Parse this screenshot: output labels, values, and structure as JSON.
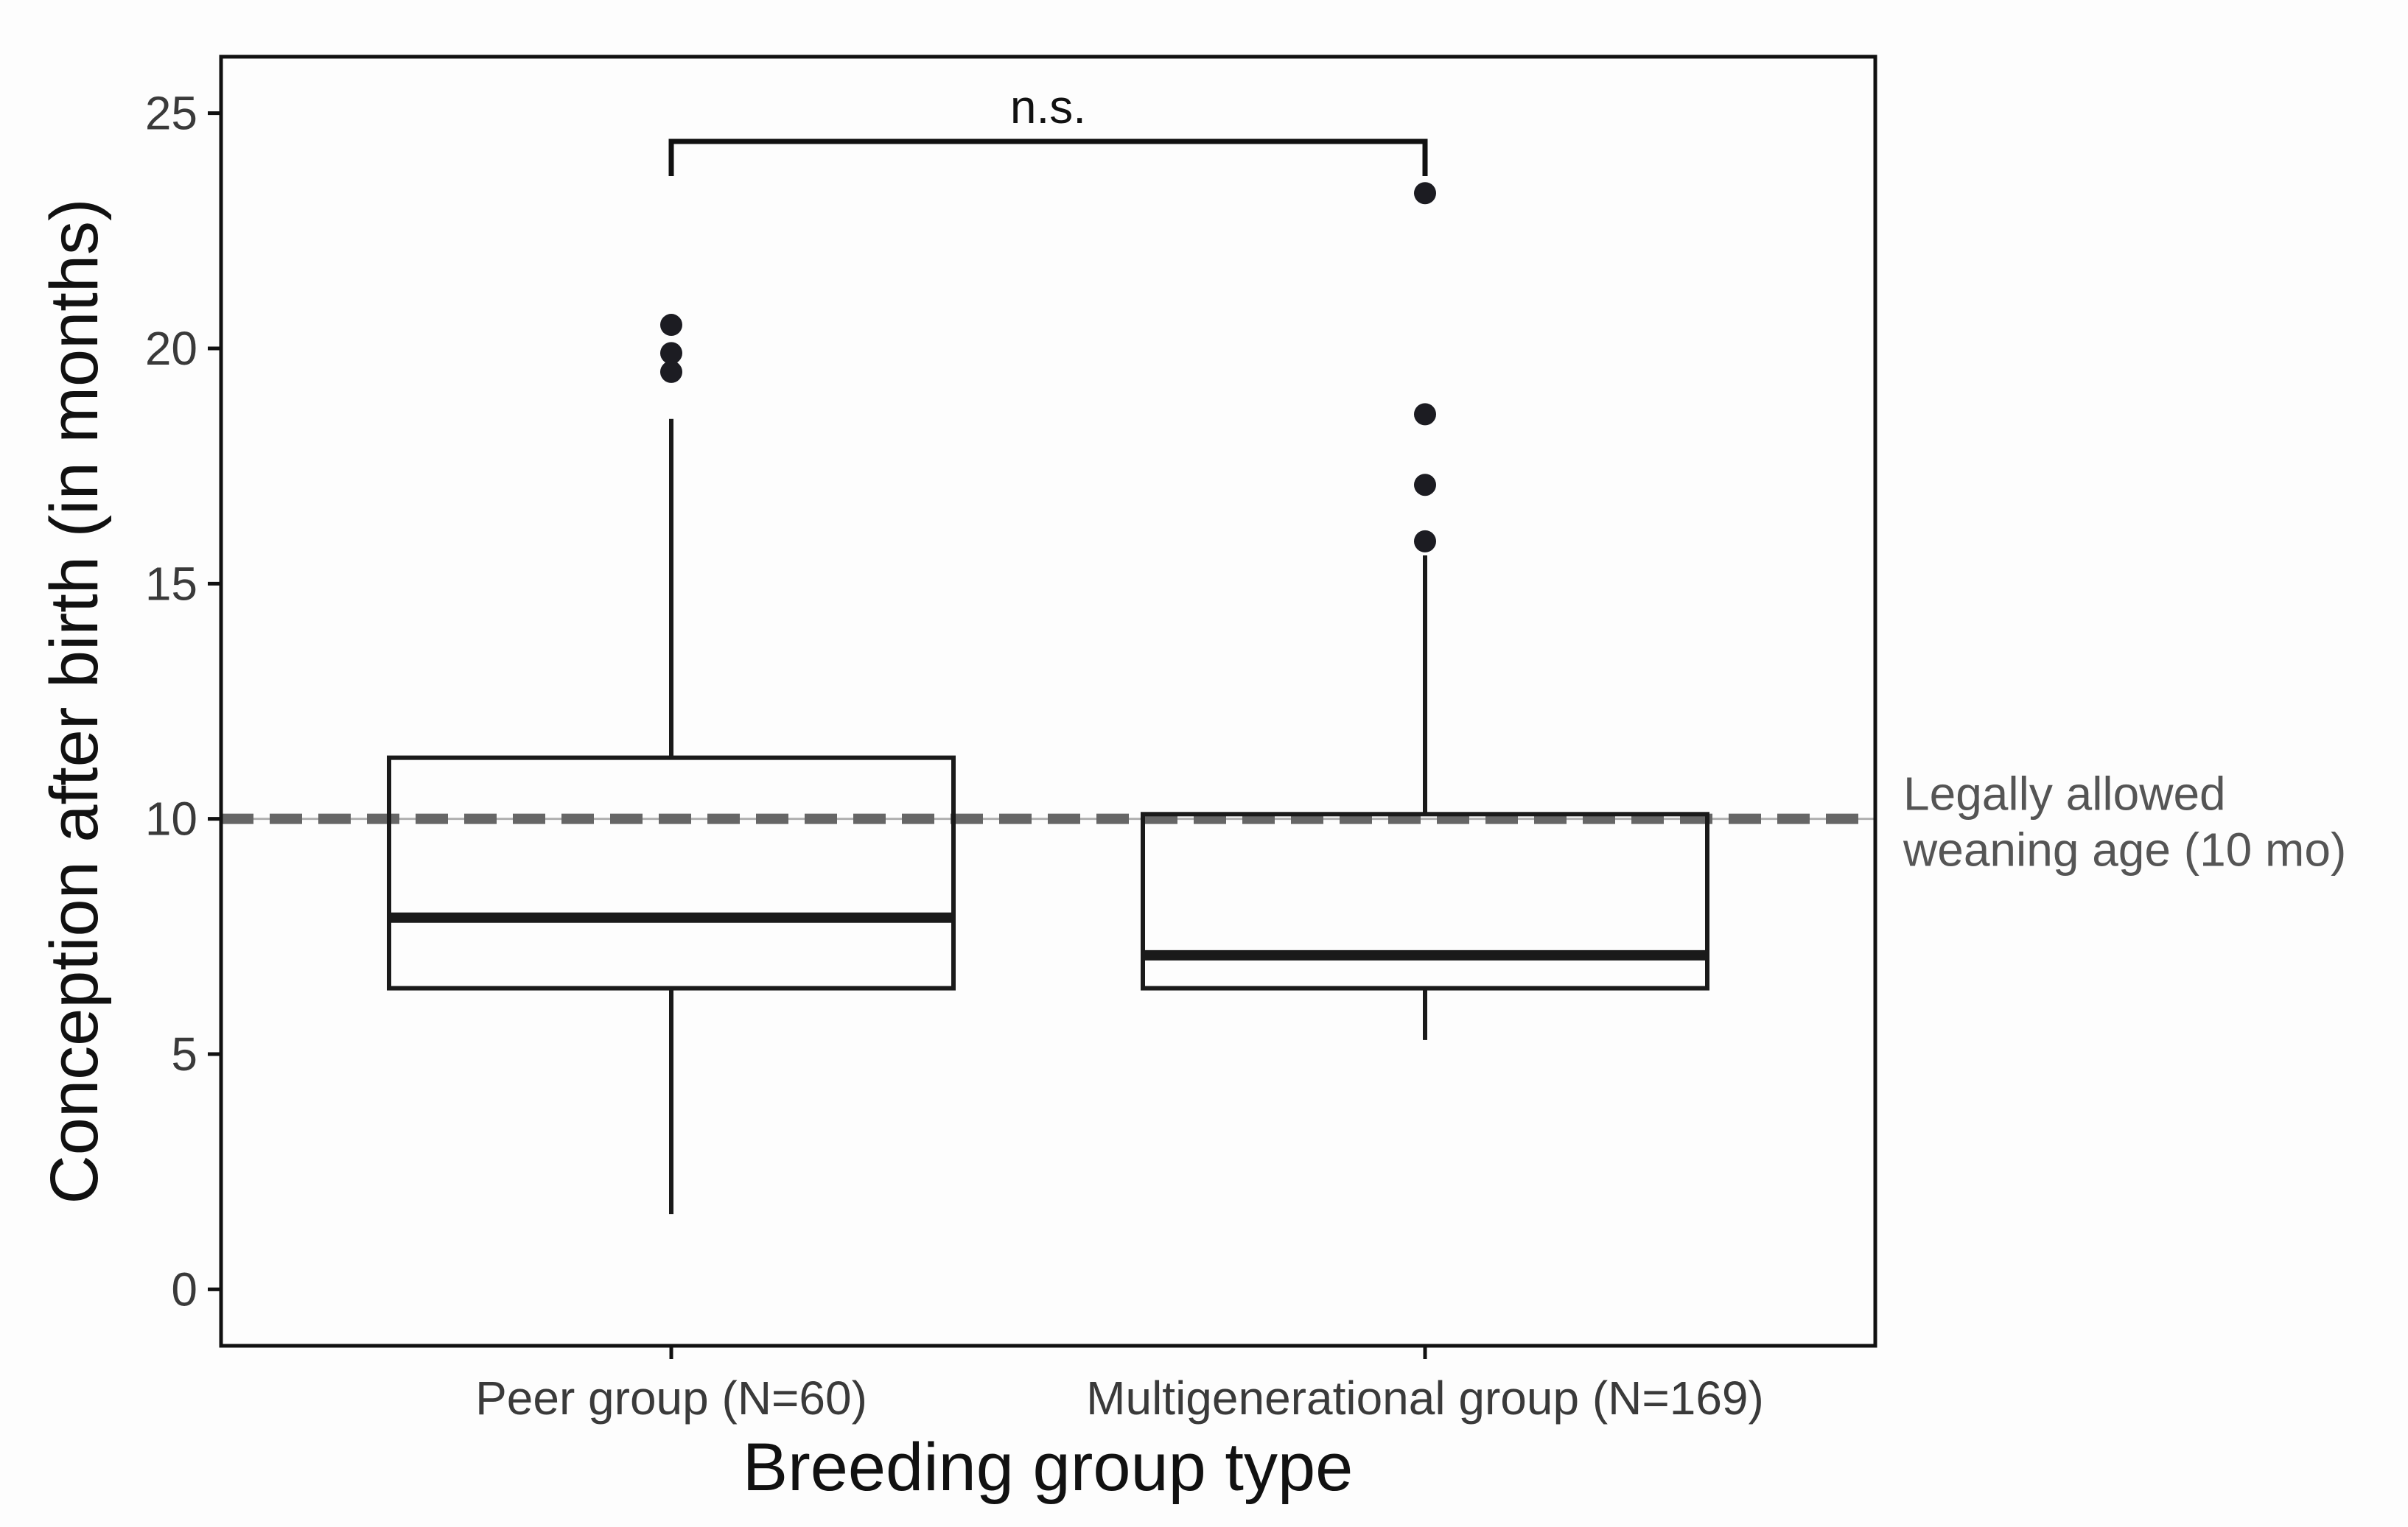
{
  "chart_data": {
    "type": "boxplot",
    "title": "",
    "xlabel": "Breeding group type",
    "ylabel": "Conception after birth (in months)",
    "ylim": [
      -1.2,
      26.2
    ],
    "yticks": [
      0,
      5,
      10,
      15,
      20,
      25
    ],
    "categories": [
      "Peer group (N=60)",
      "Multigenerational group (N=169)"
    ],
    "boxes": [
      {
        "name": "Peer group (N=60)",
        "n": 60,
        "whisker_low": 1.6,
        "q1": 6.4,
        "median": 7.9,
        "q3": 11.3,
        "whisker_high": 18.5,
        "outliers": [
          19.5,
          19.9,
          20.5
        ]
      },
      {
        "name": "Multigenerational group (N=169)",
        "n": 169,
        "whisker_low": 5.3,
        "q1": 6.4,
        "median": 7.1,
        "q3": 10.1,
        "whisker_high": 15.6,
        "outliers": [
          15.9,
          17.1,
          18.6,
          23.3
        ]
      }
    ],
    "reference_line": {
      "value": 10,
      "style": "dashed",
      "label_line1": "Legally allowed",
      "label_line2": "weaning age (10 mo)"
    },
    "significance": {
      "label": "n.s.",
      "between": [
        0,
        1
      ],
      "y": 24.4
    },
    "colors": {
      "box": "#1a1a1a",
      "outlier": "#1c1c22",
      "reference": "#666666",
      "reference_thin": "#b0b0b0"
    },
    "grid": false,
    "legend": "none"
  }
}
